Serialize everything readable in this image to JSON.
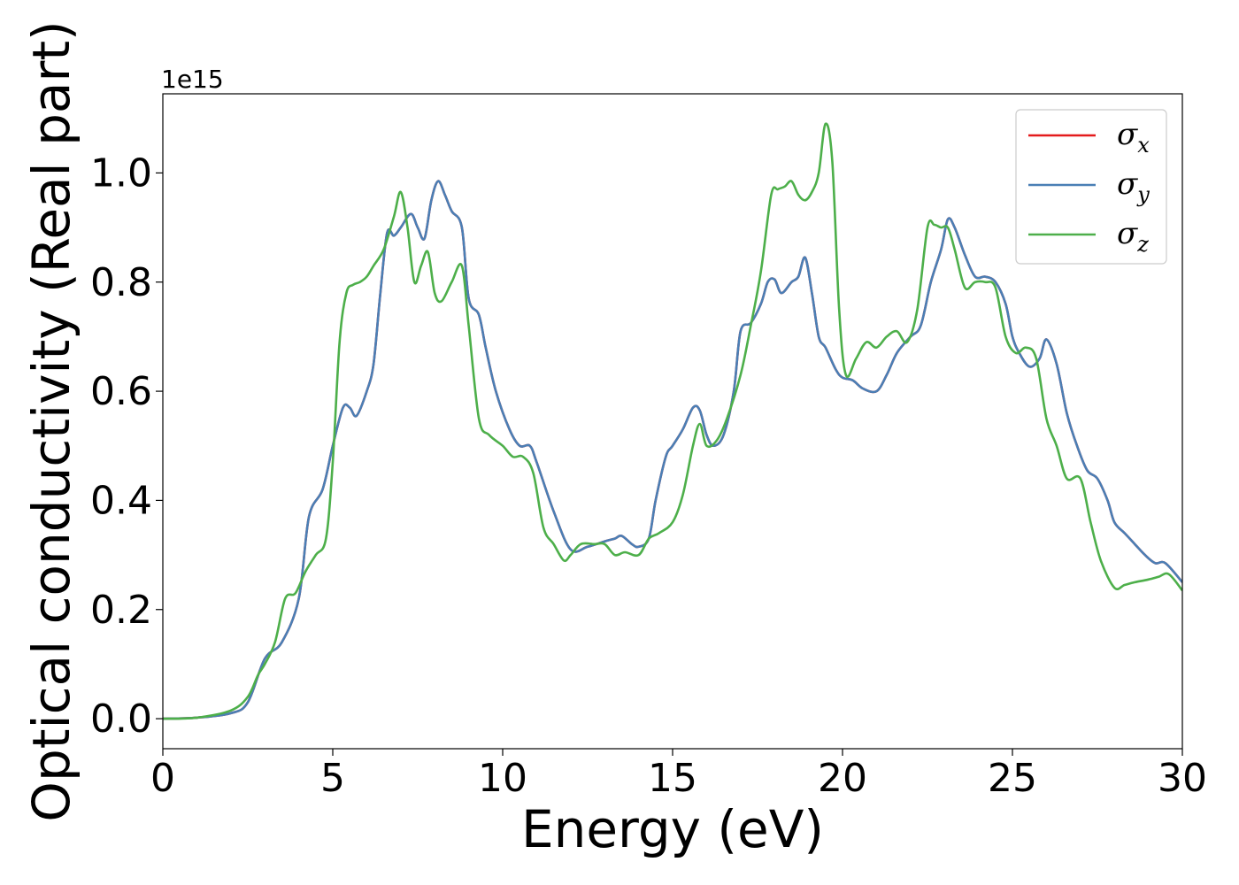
{
  "chart_data": {
    "type": "line",
    "title": "",
    "xlabel": "Energy (eV)",
    "ylabel": "Optical conductivity (Real part)",
    "y_offset_label": "1e15",
    "xlim": [
      0,
      30
    ],
    "ylim": [
      -0.055,
      1.145
    ],
    "x_ticks": [
      0,
      5,
      10,
      15,
      20,
      25,
      30
    ],
    "y_ticks": [
      0.0,
      0.2,
      0.4,
      0.6,
      0.8,
      1.0
    ],
    "y_tick_labels": [
      "0.0",
      "0.2",
      "0.4",
      "0.6",
      "0.8",
      "1.0"
    ],
    "grid": false,
    "legend_position": "top-right",
    "series": [
      {
        "name": "σx",
        "symbol": "σ",
        "subscript": "x",
        "color": "#e41a1c",
        "x": [
          0,
          1,
          2,
          2.5,
          3,
          3.5,
          4,
          4.3,
          4.7,
          5,
          5.3,
          5.5,
          5.7,
          6,
          6.2,
          6.4,
          6.6,
          6.8,
          7,
          7.3,
          7.5,
          7.7,
          7.9,
          8.1,
          8.3,
          8.5,
          8.8,
          9,
          9.3,
          9.5,
          9.8,
          10.2,
          10.5,
          10.8,
          11,
          11.5,
          12,
          12.5,
          13,
          13.3,
          13.5,
          13.8,
          14,
          14.3,
          14.5,
          14.8,
          15,
          15.3,
          15.6,
          15.8,
          16,
          16.2,
          16.5,
          16.8,
          17,
          17.3,
          17.6,
          17.8,
          18,
          18.2,
          18.5,
          18.7,
          18.9,
          19.1,
          19.3,
          19.5,
          19.8,
          20,
          20.3,
          20.6,
          21,
          21.3,
          21.6,
          22,
          22.3,
          22.6,
          22.9,
          23.1,
          23.3,
          23.6,
          23.9,
          24.2,
          24.5,
          24.8,
          25,
          25.2,
          25.5,
          25.8,
          26,
          26.3,
          26.6,
          26.9,
          27.2,
          27.5,
          27.8,
          28,
          28.3,
          28.6,
          28.9,
          29.2,
          29.5,
          30
        ],
        "y": [
          0,
          0.002,
          0.01,
          0.03,
          0.11,
          0.14,
          0.22,
          0.37,
          0.42,
          0.5,
          0.57,
          0.57,
          0.555,
          0.6,
          0.65,
          0.78,
          0.89,
          0.885,
          0.9,
          0.925,
          0.9,
          0.88,
          0.95,
          0.985,
          0.96,
          0.93,
          0.9,
          0.77,
          0.74,
          0.68,
          0.6,
          0.53,
          0.5,
          0.5,
          0.47,
          0.38,
          0.31,
          0.315,
          0.325,
          0.33,
          0.335,
          0.32,
          0.315,
          0.33,
          0.4,
          0.48,
          0.5,
          0.53,
          0.57,
          0.565,
          0.52,
          0.5,
          0.52,
          0.6,
          0.71,
          0.725,
          0.76,
          0.8,
          0.805,
          0.78,
          0.8,
          0.81,
          0.845,
          0.78,
          0.7,
          0.68,
          0.64,
          0.625,
          0.62,
          0.605,
          0.6,
          0.63,
          0.67,
          0.7,
          0.72,
          0.8,
          0.86,
          0.915,
          0.9,
          0.85,
          0.81,
          0.81,
          0.8,
          0.76,
          0.7,
          0.67,
          0.645,
          0.66,
          0.695,
          0.65,
          0.56,
          0.5,
          0.455,
          0.44,
          0.4,
          0.36,
          0.34,
          0.32,
          0.3,
          0.285,
          0.285,
          0.25
        ]
      },
      {
        "name": "σy",
        "symbol": "σ",
        "subscript": "y",
        "color": "#4a7fb5",
        "x": [
          0,
          1,
          2,
          2.5,
          3,
          3.5,
          4,
          4.3,
          4.7,
          5,
          5.3,
          5.5,
          5.7,
          6,
          6.2,
          6.4,
          6.6,
          6.8,
          7,
          7.3,
          7.5,
          7.7,
          7.9,
          8.1,
          8.3,
          8.5,
          8.8,
          9,
          9.3,
          9.5,
          9.8,
          10.2,
          10.5,
          10.8,
          11,
          11.5,
          12,
          12.5,
          13,
          13.3,
          13.5,
          13.8,
          14,
          14.3,
          14.5,
          14.8,
          15,
          15.3,
          15.6,
          15.8,
          16,
          16.2,
          16.5,
          16.8,
          17,
          17.3,
          17.6,
          17.8,
          18,
          18.2,
          18.5,
          18.7,
          18.9,
          19.1,
          19.3,
          19.5,
          19.8,
          20,
          20.3,
          20.6,
          21,
          21.3,
          21.6,
          22,
          22.3,
          22.6,
          22.9,
          23.1,
          23.3,
          23.6,
          23.9,
          24.2,
          24.5,
          24.8,
          25,
          25.2,
          25.5,
          25.8,
          26,
          26.3,
          26.6,
          26.9,
          27.2,
          27.5,
          27.8,
          28,
          28.3,
          28.6,
          28.9,
          29.2,
          29.5,
          30
        ],
        "y": [
          0,
          0.002,
          0.01,
          0.03,
          0.11,
          0.14,
          0.22,
          0.37,
          0.42,
          0.5,
          0.57,
          0.57,
          0.555,
          0.6,
          0.65,
          0.78,
          0.89,
          0.885,
          0.9,
          0.925,
          0.9,
          0.88,
          0.95,
          0.985,
          0.96,
          0.93,
          0.9,
          0.77,
          0.74,
          0.68,
          0.6,
          0.53,
          0.5,
          0.5,
          0.47,
          0.38,
          0.31,
          0.315,
          0.325,
          0.33,
          0.335,
          0.32,
          0.315,
          0.33,
          0.4,
          0.48,
          0.5,
          0.53,
          0.57,
          0.565,
          0.52,
          0.5,
          0.52,
          0.6,
          0.71,
          0.725,
          0.76,
          0.8,
          0.805,
          0.78,
          0.8,
          0.81,
          0.845,
          0.78,
          0.7,
          0.68,
          0.64,
          0.625,
          0.62,
          0.605,
          0.6,
          0.63,
          0.67,
          0.7,
          0.72,
          0.8,
          0.86,
          0.915,
          0.9,
          0.85,
          0.81,
          0.81,
          0.8,
          0.76,
          0.7,
          0.67,
          0.645,
          0.66,
          0.695,
          0.65,
          0.56,
          0.5,
          0.455,
          0.44,
          0.4,
          0.36,
          0.34,
          0.32,
          0.3,
          0.285,
          0.285,
          0.25
        ]
      },
      {
        "name": "σz",
        "symbol": "σ",
        "subscript": "z",
        "color": "#4daf4a",
        "x": [
          0,
          1,
          2,
          2.5,
          2.8,
          3,
          3.3,
          3.6,
          3.9,
          4.2,
          4.5,
          4.8,
          5,
          5.2,
          5.4,
          5.6,
          5.8,
          6,
          6.2,
          6.5,
          6.8,
          7,
          7.2,
          7.4,
          7.6,
          7.8,
          8,
          8.2,
          8.5,
          8.8,
          9,
          9.3,
          9.6,
          10,
          10.3,
          10.6,
          10.9,
          11.2,
          11.5,
          11.8,
          12,
          12.3,
          12.7,
          13,
          13.3,
          13.6,
          14,
          14.3,
          14.6,
          15,
          15.3,
          15.6,
          15.8,
          16,
          16.3,
          16.6,
          17,
          17.3,
          17.6,
          17.9,
          18.1,
          18.3,
          18.5,
          18.7,
          18.9,
          19.1,
          19.3,
          19.5,
          19.7,
          19.9,
          20.1,
          20.4,
          20.7,
          21,
          21.3,
          21.6,
          21.9,
          22.2,
          22.5,
          22.7,
          22.9,
          23.1,
          23.3,
          23.6,
          23.9,
          24.2,
          24.5,
          24.8,
          25.1,
          25.4,
          25.7,
          26,
          26.3,
          26.6,
          27,
          27.3,
          27.6,
          28,
          28.3,
          28.6,
          29,
          29.3,
          29.6,
          30
        ],
        "y": [
          0,
          0.002,
          0.015,
          0.04,
          0.08,
          0.1,
          0.14,
          0.22,
          0.23,
          0.27,
          0.3,
          0.33,
          0.47,
          0.69,
          0.78,
          0.795,
          0.8,
          0.81,
          0.83,
          0.86,
          0.92,
          0.965,
          0.9,
          0.8,
          0.83,
          0.855,
          0.78,
          0.765,
          0.8,
          0.83,
          0.72,
          0.55,
          0.52,
          0.5,
          0.48,
          0.48,
          0.45,
          0.35,
          0.32,
          0.29,
          0.3,
          0.32,
          0.32,
          0.32,
          0.3,
          0.305,
          0.3,
          0.33,
          0.34,
          0.36,
          0.41,
          0.5,
          0.54,
          0.5,
          0.51,
          0.55,
          0.63,
          0.72,
          0.82,
          0.96,
          0.97,
          0.975,
          0.985,
          0.96,
          0.95,
          0.965,
          1.0,
          1.09,
          1.02,
          0.75,
          0.63,
          0.66,
          0.69,
          0.68,
          0.7,
          0.71,
          0.69,
          0.75,
          0.9,
          0.905,
          0.9,
          0.9,
          0.86,
          0.79,
          0.8,
          0.8,
          0.79,
          0.7,
          0.67,
          0.68,
          0.66,
          0.55,
          0.5,
          0.44,
          0.44,
          0.36,
          0.29,
          0.24,
          0.245,
          0.25,
          0.255,
          0.26,
          0.265,
          0.235
        ]
      }
    ]
  }
}
